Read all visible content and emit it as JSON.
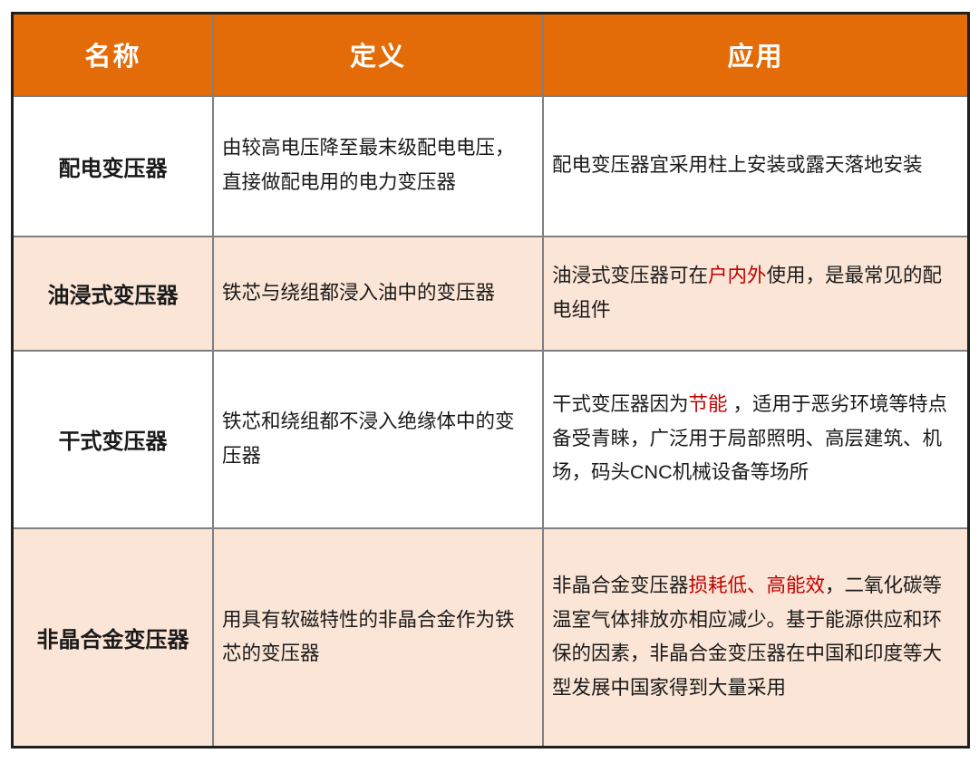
{
  "colors": {
    "header_bg": "#E36C09",
    "header_text": "#FFFFFF",
    "alt_row_bg": "#FBE5D6",
    "body_text": "#1A1A1A",
    "highlight_red": "#C00000",
    "grid_line": "#808080",
    "outer_border": "#1F1F1F"
  },
  "table": {
    "headers": [
      "名称",
      "定义",
      "应用"
    ],
    "rows": [
      {
        "name": "配电变压器",
        "alt": false,
        "definition": [
          {
            "text": "由较高电压降至最末级配电电压，直接做配电用的电力变压器",
            "red": false
          }
        ],
        "application": [
          {
            "text": "配电变压器宜采用柱上安装或露天落地安装",
            "red": false
          }
        ]
      },
      {
        "name": "油浸式变压器",
        "alt": true,
        "definition": [
          {
            "text": "铁芯与绕组都浸入油中的变压器",
            "red": false
          }
        ],
        "application": [
          {
            "text": "油浸式变压器可在",
            "red": false
          },
          {
            "text": "户内外",
            "red": true
          },
          {
            "text": "使用，是最常见的配电组件",
            "red": false
          }
        ]
      },
      {
        "name": "干式变压器",
        "alt": false,
        "definition": [
          {
            "text": "铁芯和绕组都不浸入绝缘体中的变压器",
            "red": false
          }
        ],
        "application": [
          {
            "text": "干式变压器因为",
            "red": false
          },
          {
            "text": "节能",
            "red": true
          },
          {
            "text": " ，适用于恶劣环境等特点备受青睐，广泛用于局部照明、高层建筑、机场，码头CNC机械设备等场所",
            "red": false
          }
        ]
      },
      {
        "name": "非晶合金变压器",
        "alt": true,
        "definition": [
          {
            "text": "用具有软磁特性的非晶合金作为铁芯的变压器",
            "red": false
          }
        ],
        "application": [
          {
            "text": "非晶合金变压器",
            "red": false
          },
          {
            "text": "损耗低、高能效",
            "red": true
          },
          {
            "text": "，二氧化碳等温室气体排放亦相应减少。基于能源供应和环保的因素，非晶合金变压器在中国和印度等大型发展中国家得到大量采用",
            "red": false
          }
        ]
      }
    ]
  },
  "chart_data": {
    "type": "table",
    "headers": [
      "名称",
      "定义",
      "应用"
    ],
    "rows": [
      [
        "配电变压器",
        "由较高电压降至最末级配电电压，直接做配电用的电力变压器",
        "配电变压器宜采用柱上安装或露天落地安装"
      ],
      [
        "油浸式变压器",
        "铁芯与绕组都浸入油中的变压器",
        "油浸式变压器可在户内外使用，是最常见的配电组件"
      ],
      [
        "干式变压器",
        "铁芯和绕组都不浸入绝缘体中的变压器",
        "干式变压器因为节能 ，适用于恶劣环境等特点备受青睐，广泛用于局部照明、高层建筑、机场，码头CNC机械设备等场所"
      ],
      [
        "非晶合金变压器",
        "用具有软磁特性的非晶合金作为铁芯的变压器",
        "非晶合金变压器损耗低、高能效，二氧化碳等温室气体排放亦相应减少。基于能源供应和环保的因素，非晶合金变压器在中国和印度等大型发展中国家得到大量采用"
      ]
    ]
  }
}
